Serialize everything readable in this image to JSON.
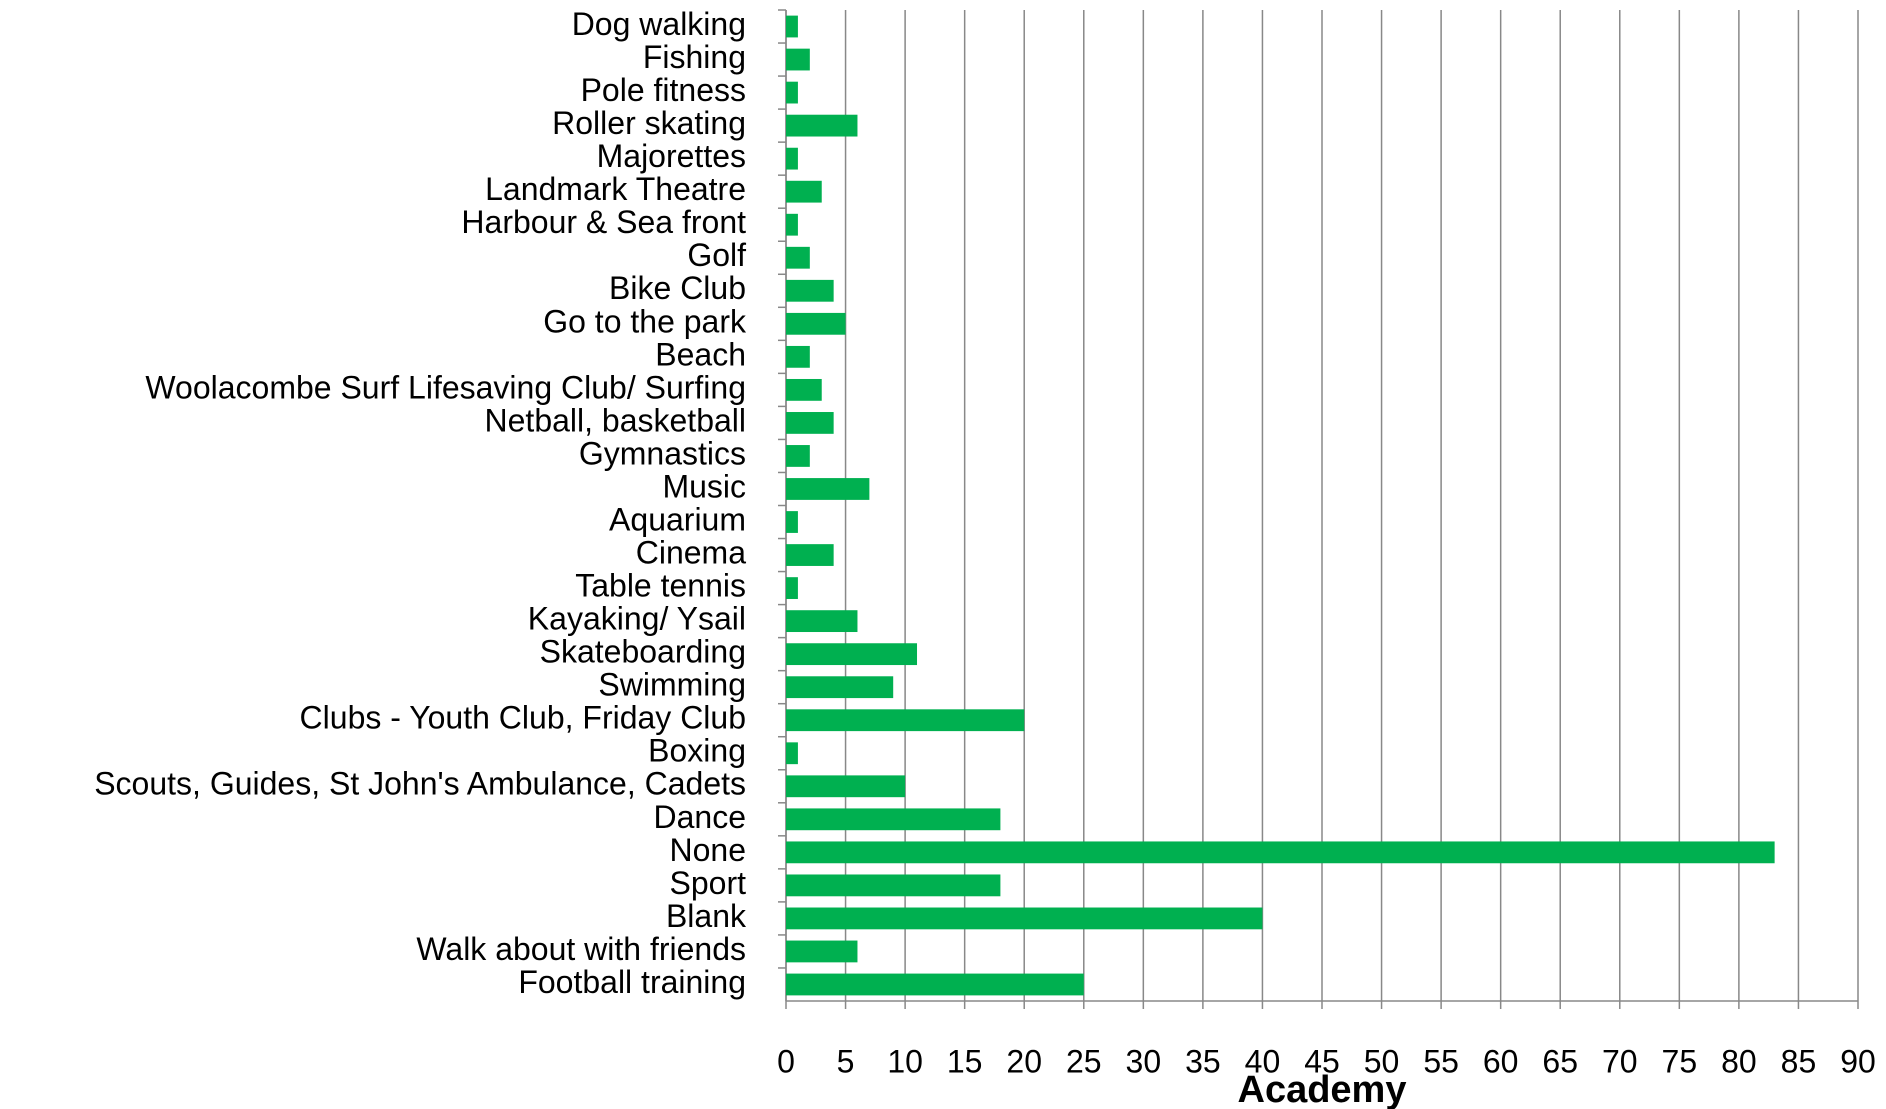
{
  "chart_data": {
    "type": "barh",
    "xlabel": "Academy",
    "categories": [
      "Dog walking",
      "Fishing",
      "Pole fitness",
      "Roller skating",
      "Majorettes",
      "Landmark Theatre",
      "Harbour & Sea front",
      "Golf",
      "Bike Club",
      "Go to the park",
      "Beach",
      "Woolacombe Surf Lifesaving Club/ Surfing",
      "Netball, basketball",
      "Gymnastics",
      "Music",
      "Aquarium",
      "Cinema",
      "Table tennis",
      "Kayaking/ Ysail",
      "Skateboarding",
      "Swimming",
      "Clubs - Youth Club, Friday Club",
      "Boxing",
      "Scouts, Guides, St John's Ambulance, Cadets",
      "Dance",
      "None",
      "Sport",
      "Blank",
      "Walk about with friends",
      "Football training"
    ],
    "values": [
      1,
      2,
      1,
      6,
      1,
      3,
      1,
      2,
      4,
      5,
      2,
      3,
      4,
      2,
      7,
      1,
      4,
      1,
      6,
      11,
      9,
      20,
      1,
      10,
      18,
      83,
      18,
      40,
      6,
      25
    ],
    "color": "#00b050",
    "xlim": [
      0,
      90
    ],
    "xticks": [
      0,
      5,
      10,
      15,
      20,
      25,
      30,
      35,
      40,
      45,
      50,
      55,
      60,
      65,
      70,
      75,
      80,
      85,
      90
    ],
    "grid": true
  }
}
